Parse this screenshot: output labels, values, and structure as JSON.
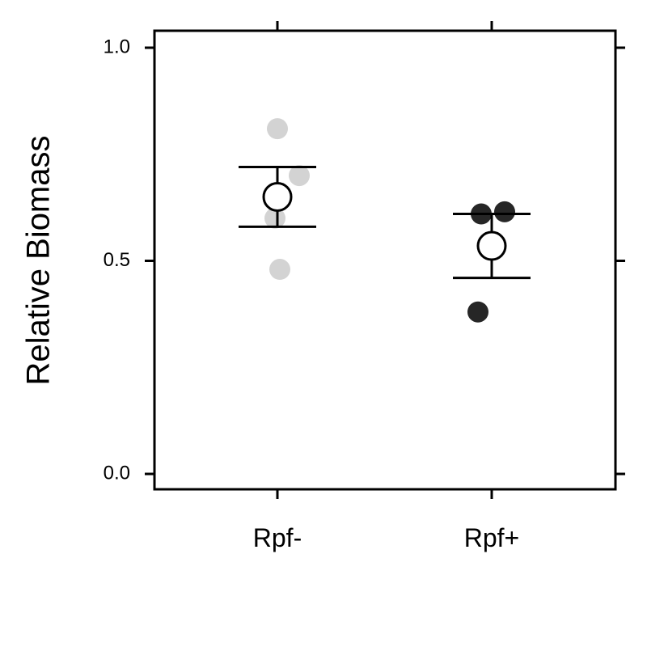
{
  "chart_data": {
    "type": "scatter",
    "title": "",
    "xlabel": "",
    "ylabel": "Relative Biomass",
    "ylim": [
      0.0,
      1.0
    ],
    "yticks": [
      0.0,
      0.5,
      1.0
    ],
    "ytick_labels": [
      "0.0",
      "0.5",
      "1.0"
    ],
    "categories": [
      "Rpf-",
      "Rpf+"
    ],
    "grid": false,
    "legend": "none",
    "groups": [
      {
        "category": "Rpf-",
        "color": "#d3d3d3",
        "points": [
          0.81,
          0.7,
          0.6,
          0.48
        ],
        "mean": 0.65,
        "error_low": 0.58,
        "error_high": 0.72
      },
      {
        "category": "Rpf+",
        "color": "#262626",
        "points": [
          0.61,
          0.615,
          0.38
        ],
        "mean": 0.535,
        "error_low": 0.46,
        "error_high": 0.61
      }
    ]
  }
}
